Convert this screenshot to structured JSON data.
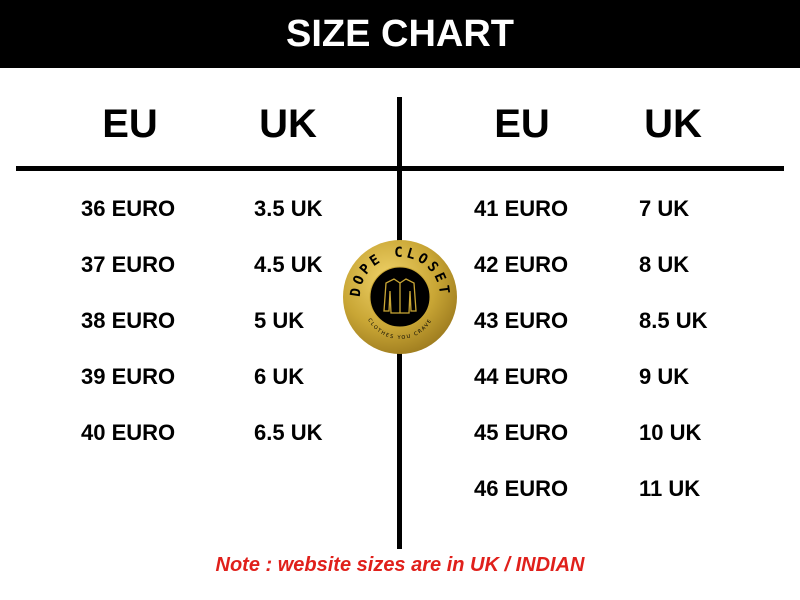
{
  "title": "SIZE CHART",
  "left": {
    "headers": [
      "EU",
      "UK"
    ],
    "rows": [
      {
        "eu": "36 EURO",
        "uk": "3.5 UK"
      },
      {
        "eu": "37 EURO",
        "uk": "4.5 UK"
      },
      {
        "eu": "38 EURO",
        "uk": "5 UK"
      },
      {
        "eu": "39 EURO",
        "uk": "6 UK"
      },
      {
        "eu": "40 EURO",
        "uk": "6.5 UK"
      }
    ]
  },
  "right": {
    "headers": [
      "EU",
      "UK"
    ],
    "rows": [
      {
        "eu": "41 EURO",
        "uk": "7 UK"
      },
      {
        "eu": "42 EURO",
        "uk": "8 UK"
      },
      {
        "eu": "43 EURO",
        "uk": "8.5 UK"
      },
      {
        "eu": "44 EURO",
        "uk": "9 UK"
      },
      {
        "eu": "45 EURO",
        "uk": "10 UK"
      },
      {
        "eu": "46 EURO",
        "uk": "11 UK"
      }
    ]
  },
  "logo": {
    "name": "DOPE CLOSET",
    "tagline": "CLOTHES YOU CRAVE",
    "icon": "shirt-icon",
    "gold": "#c9a635"
  },
  "note": "Note : website sizes are in UK / INDIAN",
  "colors": {
    "header_bg": "#000000",
    "note": "#e0201b"
  }
}
